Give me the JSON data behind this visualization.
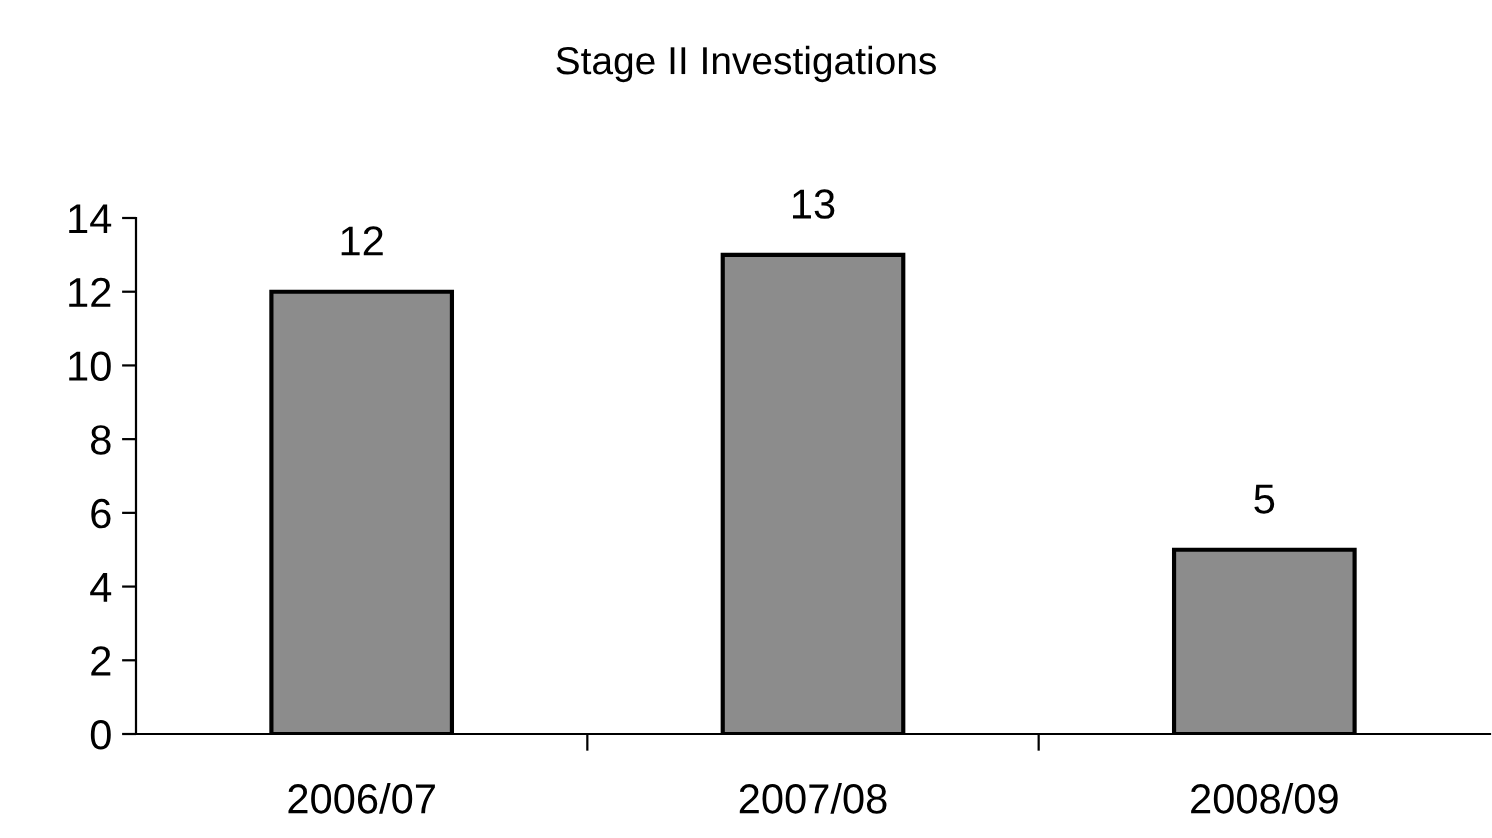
{
  "chart_data": {
    "type": "bar",
    "title": "Stage II Investigations",
    "categories": [
      "2006/07",
      "2007/08",
      "2008/09"
    ],
    "values": [
      12,
      13,
      5
    ],
    "color": "#8c8c8c",
    "ylim": [
      0,
      14
    ],
    "yticks": [
      0,
      2,
      4,
      6,
      8,
      10,
      12,
      14
    ],
    "data_labels": true,
    "grid": false,
    "legend": false
  }
}
